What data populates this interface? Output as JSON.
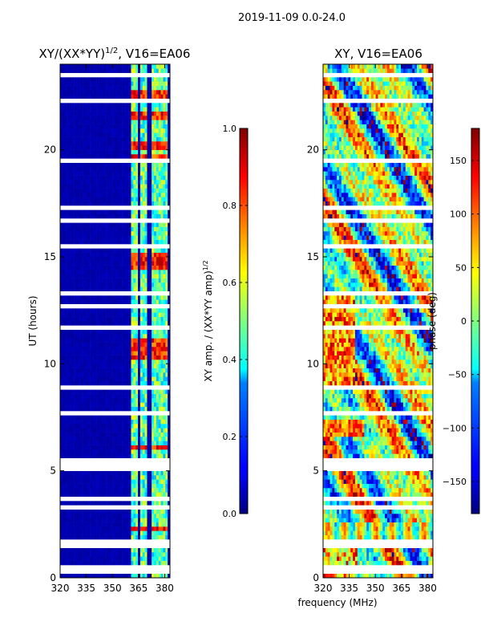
{
  "suptitle": "2019-11-09 0.0-24.0",
  "chart_data": [
    {
      "type": "heatmap",
      "title_main": "XY/(XX*YY)",
      "title_sup": "1/2",
      "title_suffix": ", V16=EA06",
      "xlabel": "",
      "ylabel": "UT (hours)",
      "xlim": [
        320,
        383
      ],
      "ylim": [
        0,
        24
      ],
      "xticks": [
        320,
        335,
        350,
        365,
        380
      ],
      "yticks": [
        0,
        5,
        10,
        15,
        20
      ],
      "signal_freq_bands_mhz": [
        [
          361,
          365
        ],
        [
          366,
          370
        ],
        [
          372,
          376
        ],
        [
          377,
          382
        ]
      ],
      "bright_hours": [
        2.3,
        6.1,
        10.3,
        10.7,
        11.0,
        14.6,
        14.9,
        19.7,
        20.2,
        21.5,
        22.5
      ],
      "gap_hours": [
        0.3,
        0.55,
        1.5,
        1.7,
        2.6,
        3.0,
        3.3,
        3.7,
        4.0,
        4.4,
        4.8,
        5.1,
        5.3,
        5.5,
        6.4,
        6.8,
        7.2,
        7.7,
        8.2,
        8.6,
        8.9,
        9.4,
        9.6,
        9.8,
        11.7,
        12.7,
        13.0,
        13.3,
        13.6,
        14.2,
        15.5,
        16.0,
        16.7,
        17.0,
        17.3,
        18.4,
        18.8,
        19.2,
        19.5,
        21.0,
        22.3,
        22.8,
        23.2,
        23.5
      ],
      "colorbar": {
        "label": "XY amp. / (XX*YY amp)",
        "label_sup": "1/2",
        "range": [
          0,
          1
        ],
        "ticks": [
          "0.0",
          "0.2",
          "0.4",
          "0.6",
          "0.8",
          "1.0"
        ],
        "tick_values": [
          0,
          0.2,
          0.4,
          0.6,
          0.8,
          1.0
        ],
        "colormap": "jet"
      }
    },
    {
      "type": "heatmap",
      "title": "XY, V16=EA06",
      "xlabel": "frequency (MHz)",
      "ylabel": "",
      "xlim": [
        320,
        383
      ],
      "ylim": [
        0,
        24
      ],
      "xticks": [
        320,
        335,
        350,
        365,
        380
      ],
      "yticks": [
        0,
        5,
        10,
        15,
        20
      ],
      "colorbar": {
        "label": "phase (deg)",
        "range": [
          -180,
          180
        ],
        "ticks": [
          "−150",
          "−100",
          "−50",
          "0",
          "50",
          "100",
          "150"
        ],
        "tick_values": [
          -150,
          -100,
          -50,
          0,
          50,
          100,
          150
        ],
        "colormap": "jet"
      }
    }
  ],
  "colors": {
    "jet_dark_blue": "#00007f",
    "jet_blue": "#0000ff",
    "jet_cyan": "#00ffff",
    "jet_yellow": "#ffff00",
    "jet_red": "#ff0000",
    "jet_dark_red": "#7f0000",
    "gap_white": "#ffffff",
    "axis": "#000000"
  }
}
